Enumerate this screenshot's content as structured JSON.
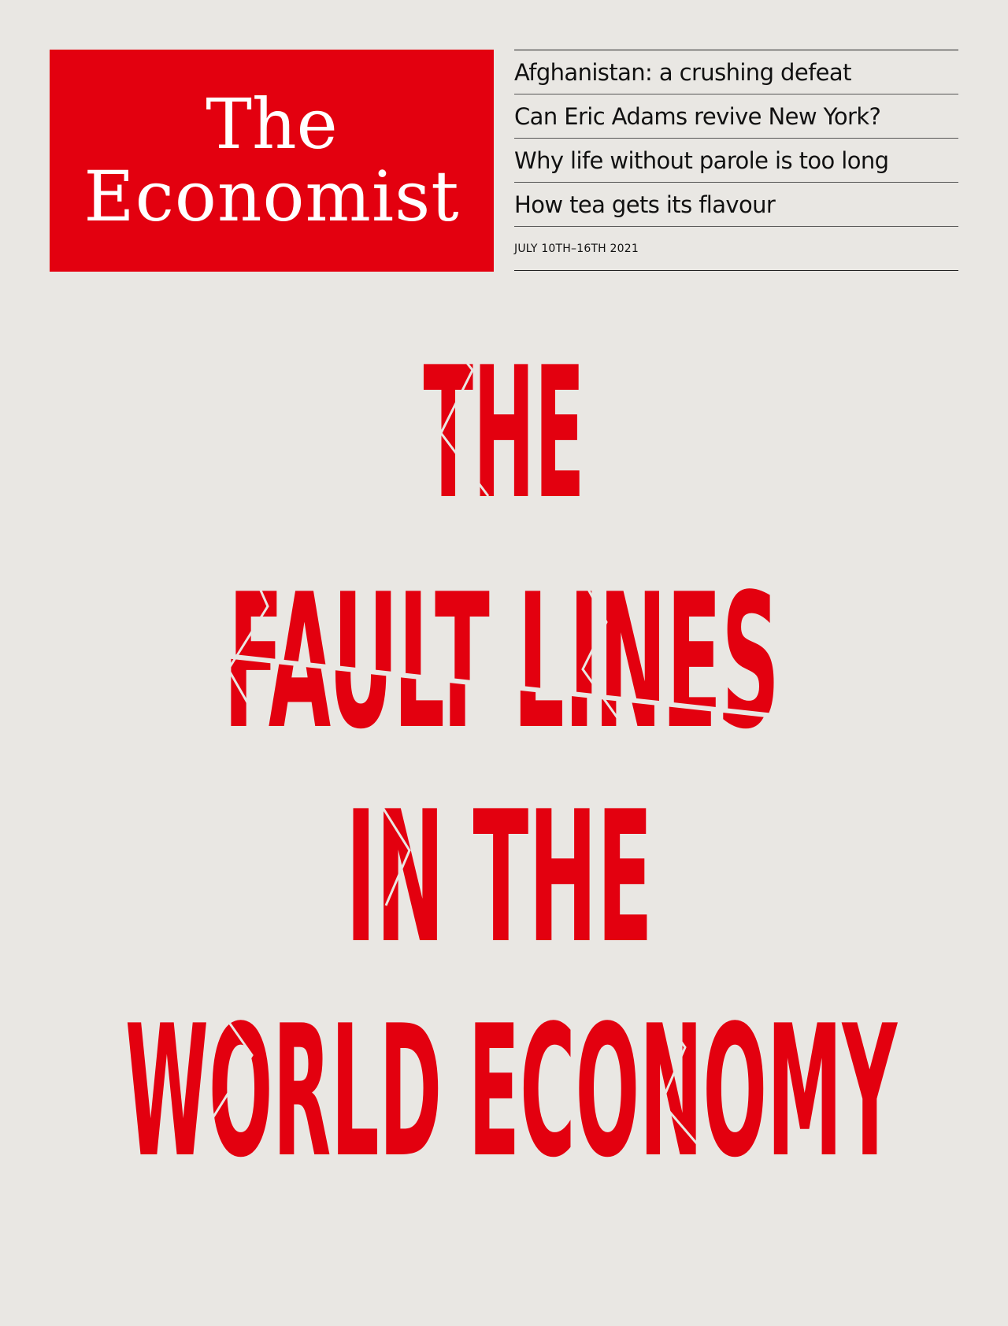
{
  "masthead": {
    "line1": "The",
    "line2": "Economist"
  },
  "teasers": [
    "Afghanistan: a crushing defeat",
    "Can Eric Adams revive New York?",
    "Why life without parole is too long",
    "How tea gets its flavour"
  ],
  "dateline": "JULY 10TH–16TH 2021",
  "headline": {
    "lines": [
      "THE",
      "FAULT LINES",
      "IN THE",
      "WORLD ECONOMY"
    ]
  },
  "colors": {
    "brand_red": "#e3000f",
    "background": "#e9e7e3"
  }
}
